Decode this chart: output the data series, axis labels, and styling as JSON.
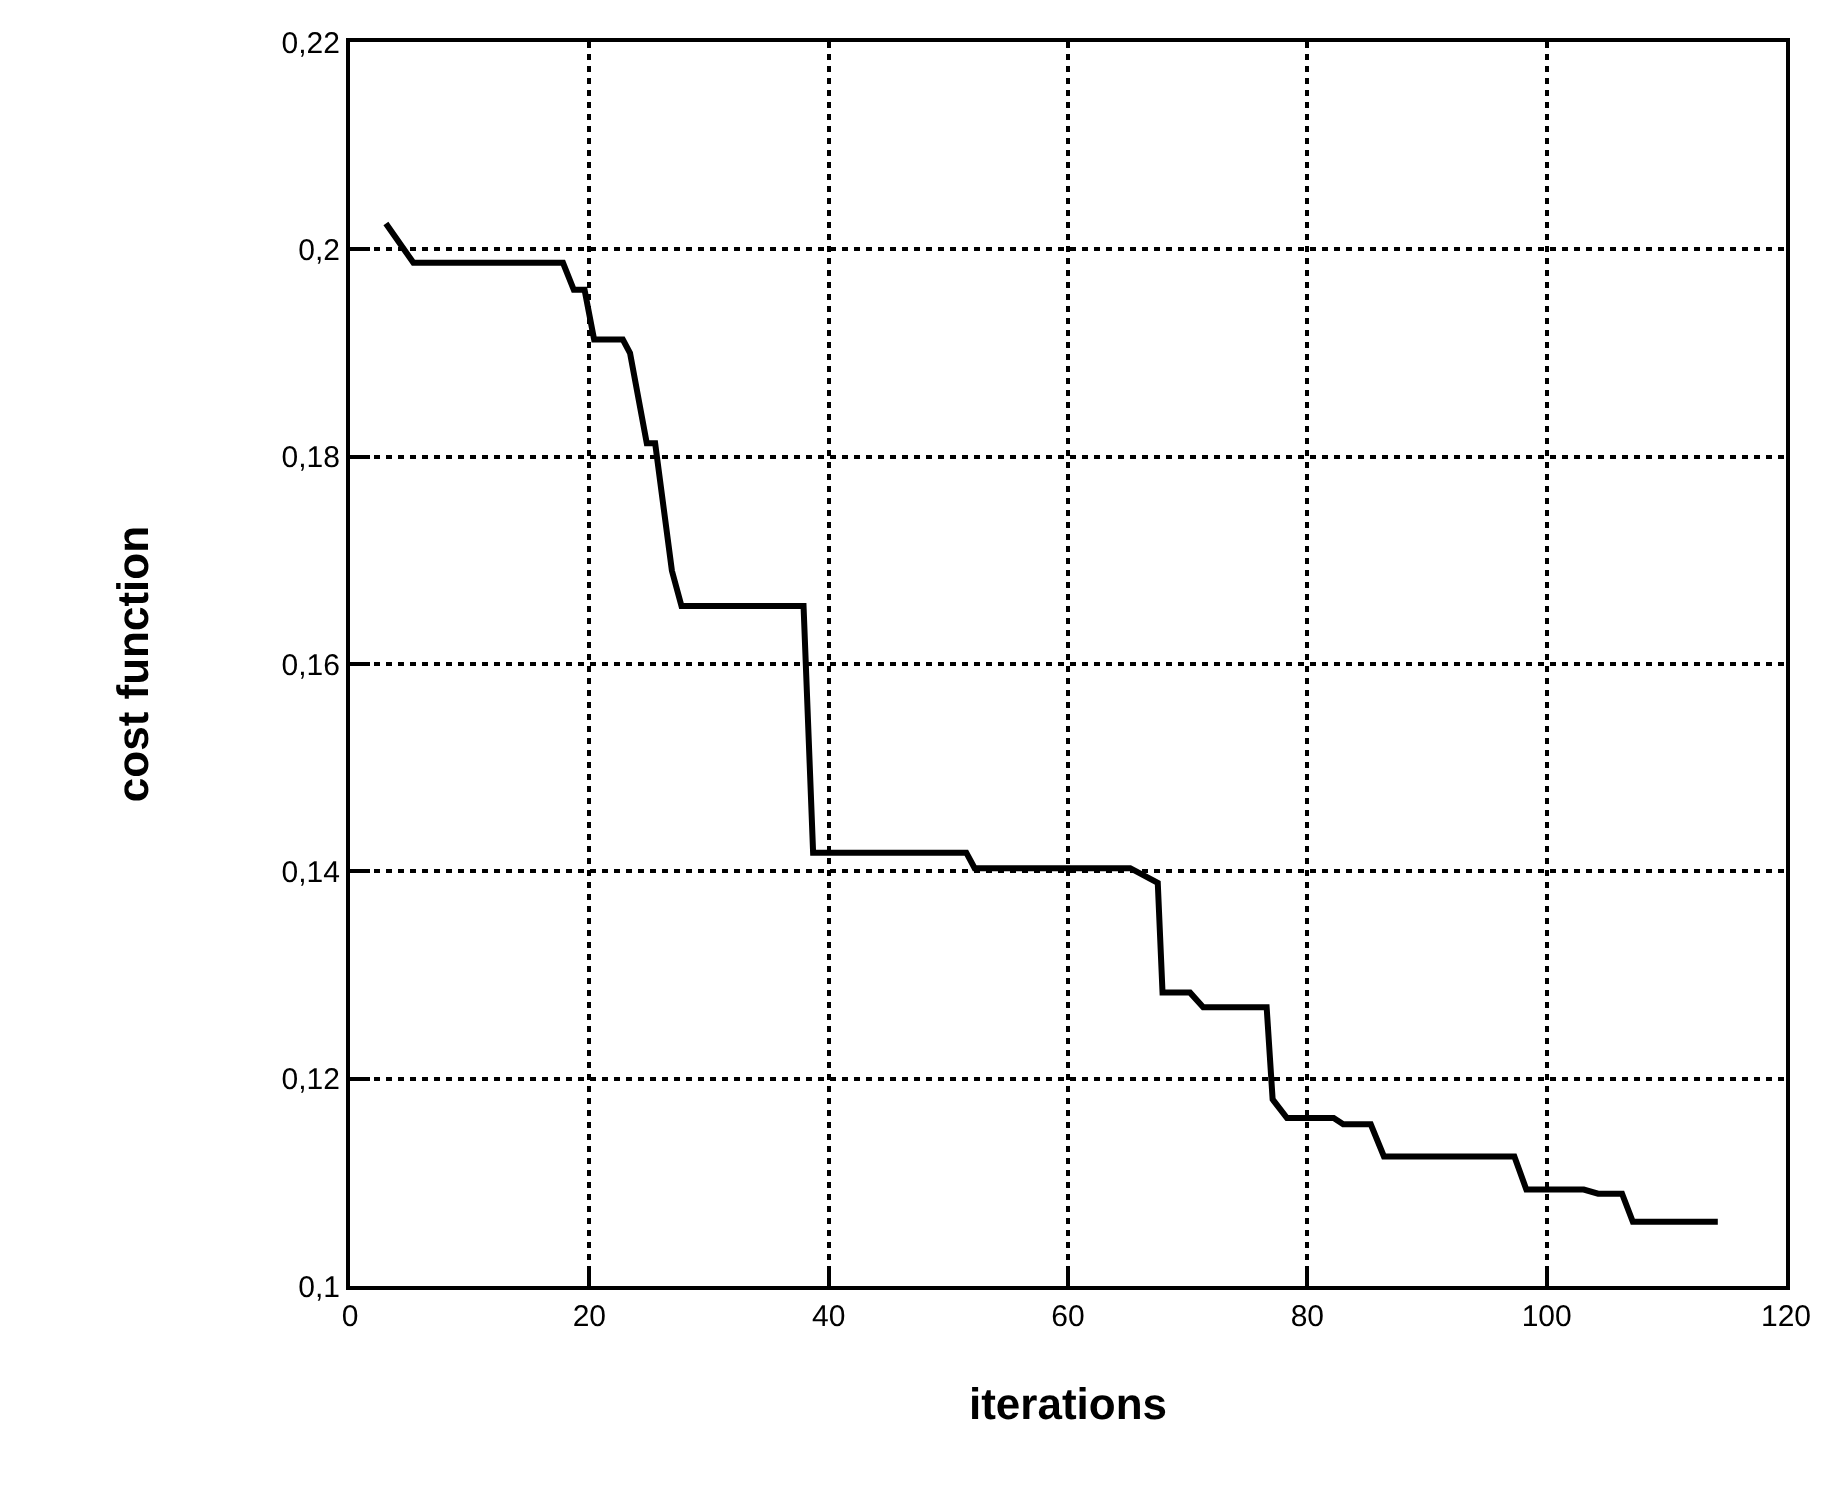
{
  "chart_data": {
    "type": "line",
    "xlabel": "iterations",
    "ylabel": "cost function",
    "xlim": [
      0,
      120
    ],
    "xticks": [
      0,
      20,
      40,
      60,
      80,
      100,
      120
    ],
    "ylim": [
      0.1,
      0.22
    ],
    "yticks": [
      {
        "value": 0.1,
        "label": "0,1"
      },
      {
        "value": 0.12,
        "label": "0,12"
      },
      {
        "value": 0.14,
        "label": "0,14"
      },
      {
        "value": 0.16,
        "label": "0,16"
      },
      {
        "value": 0.18,
        "label": "0,18"
      },
      {
        "value": 0.2,
        "label": "0,2"
      },
      {
        "value": 0.22,
        "label": "0,22"
      }
    ],
    "grid": true,
    "marker": "none",
    "line_style": "solid",
    "series": [
      {
        "color": "#000000",
        "x": [
          3,
          5.3,
          17.8,
          18.7,
          19.6,
          20.4,
          22.8,
          23.4,
          24.8,
          25.5,
          26.9,
          27.7,
          37.9,
          38.7,
          51.5,
          52.2,
          65.2,
          67.5,
          67.9,
          70.2,
          71.3,
          76.6,
          77.1,
          78.3,
          82.2,
          83,
          85.3,
          86.4,
          97.3,
          98.3,
          103.1,
          104.3,
          106.3,
          107.2,
          114.3
        ],
        "values": [
          0.2025,
          0.1987,
          0.1987,
          0.1961,
          0.1961,
          0.1913,
          0.1913,
          0.19,
          0.1813,
          0.1813,
          0.169,
          0.1656,
          0.1656,
          0.1418,
          0.1418,
          0.1403,
          0.1403,
          0.1389,
          0.1283,
          0.1283,
          0.1269,
          0.1269,
          0.118,
          0.1162,
          0.1162,
          0.1156,
          0.1156,
          0.1125,
          0.1125,
          0.1093,
          0.1093,
          0.1089,
          0.1089,
          0.1062,
          0.1062
        ]
      }
    ]
  }
}
